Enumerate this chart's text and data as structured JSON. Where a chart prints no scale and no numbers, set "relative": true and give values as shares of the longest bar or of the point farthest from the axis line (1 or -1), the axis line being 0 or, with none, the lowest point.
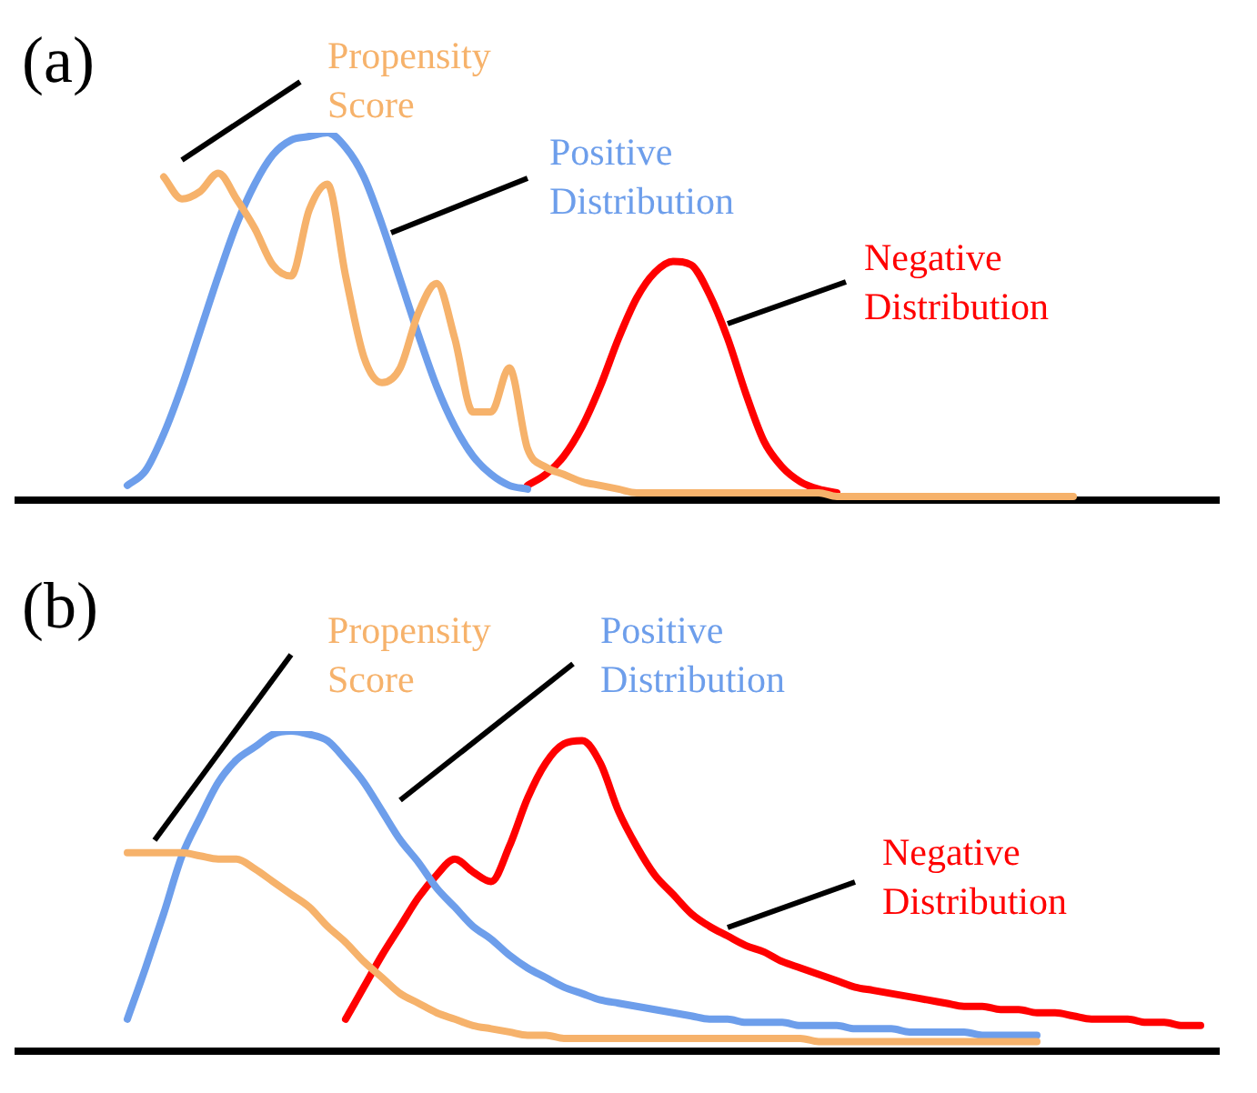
{
  "chart_data": [
    {
      "type": "line",
      "title": "(a)",
      "relative": true,
      "marker": "none",
      "tick_labels": false,
      "categories": [
        null,
        null,
        null,
        null,
        null,
        null,
        null,
        null,
        null,
        null,
        null,
        null,
        null,
        null,
        null,
        null,
        null,
        null,
        null,
        null,
        null,
        null,
        null,
        null,
        null,
        null,
        null,
        null,
        null,
        null,
        null,
        null,
        null,
        null,
        null,
        null,
        null,
        null,
        null,
        null,
        null,
        null,
        null,
        null,
        null,
        null,
        null,
        null,
        null,
        null,
        null,
        null,
        null,
        null,
        null,
        null,
        null,
        null,
        null,
        null,
        null,
        null,
        null,
        null,
        null,
        null,
        null
      ],
      "series": [
        {
          "name": "Propensity Score",
          "color": "#f6b26b",
          "values": [
            null,
            null,
            null,
            null,
            null,
            null,
            null,
            null,
            0.88,
            0.82,
            0.84,
            0.89,
            0.82,
            0.74,
            0.64,
            0.61,
            0.79,
            0.86,
            0.61,
            0.39,
            0.32,
            0.36,
            0.51,
            0.59,
            0.44,
            0.24,
            0.24,
            0.36,
            0.14,
            0.09,
            0.07,
            0.05,
            0.04,
            0.03,
            0.02,
            0.02,
            0.02,
            0.02,
            0.02,
            0.02,
            0.02,
            0.02,
            0.02,
            0.02,
            0.02,
            0.01,
            0.01,
            0.01,
            0.01,
            0.01,
            0.01,
            0.01,
            0.01,
            0.01,
            0.01,
            0.01,
            0.01,
            0.01,
            0.01,
            null,
            null,
            null,
            null,
            null,
            null,
            null,
            null
          ]
        },
        {
          "name": "Positive Distribution",
          "color": "#6d9eeb",
          "values": [
            null,
            null,
            null,
            null,
            null,
            null,
            0.04,
            0.08,
            0.18,
            0.31,
            0.46,
            0.61,
            0.75,
            0.86,
            0.94,
            0.98,
            0.99,
            1,
            0.96,
            0.88,
            0.75,
            0.6,
            0.45,
            0.31,
            0.2,
            0.12,
            0.07,
            0.04,
            0.03,
            null,
            null,
            null,
            null,
            null,
            null,
            null,
            null,
            null,
            null,
            null,
            null,
            null,
            null,
            null,
            null,
            null,
            null,
            null,
            null,
            null,
            null,
            null,
            null,
            null,
            null,
            null,
            null,
            null,
            null,
            null,
            null,
            null,
            null,
            null,
            null,
            null,
            null
          ]
        },
        {
          "name": "Negative Distribution",
          "color": "#ff0000",
          "values": [
            null,
            null,
            null,
            null,
            null,
            null,
            null,
            null,
            null,
            null,
            null,
            null,
            null,
            null,
            null,
            null,
            null,
            null,
            null,
            null,
            null,
            null,
            null,
            null,
            null,
            null,
            null,
            null,
            0.04,
            0.07,
            0.12,
            0.2,
            0.31,
            0.44,
            0.55,
            0.62,
            0.65,
            0.64,
            0.56,
            0.44,
            0.29,
            0.16,
            0.09,
            0.05,
            0.03,
            0.02,
            null,
            null,
            null,
            null,
            null,
            null,
            null,
            null,
            null,
            null,
            null,
            null,
            null,
            null,
            null,
            null,
            null,
            null,
            null,
            null,
            null
          ]
        }
      ]
    },
    {
      "type": "line",
      "title": "(b)",
      "relative": true,
      "marker": "none",
      "tick_labels": false,
      "categories": [
        null,
        null,
        null,
        null,
        null,
        null,
        null,
        null,
        null,
        null,
        null,
        null,
        null,
        null,
        null,
        null,
        null,
        null,
        null,
        null,
        null,
        null,
        null,
        null,
        null,
        null,
        null,
        null,
        null,
        null,
        null,
        null,
        null,
        null,
        null,
        null,
        null,
        null,
        null,
        null,
        null,
        null,
        null,
        null,
        null,
        null,
        null,
        null,
        null,
        null,
        null,
        null,
        null,
        null,
        null,
        null,
        null,
        null,
        null,
        null,
        null,
        null,
        null,
        null,
        null,
        null,
        null
      ],
      "series": [
        {
          "name": "Propensity Score",
          "color": "#f6b26b",
          "values": [
            null,
            null,
            null,
            null,
            null,
            null,
            0.62,
            0.62,
            0.62,
            0.62,
            0.61,
            0.6,
            0.6,
            0.57,
            0.53,
            0.49,
            0.45,
            0.39,
            0.34,
            0.28,
            0.23,
            0.18,
            0.15,
            0.12,
            0.1,
            0.08,
            0.07,
            0.06,
            0.05,
            0.05,
            0.04,
            0.04,
            0.04,
            0.04,
            0.04,
            0.04,
            0.04,
            0.04,
            0.04,
            0.04,
            0.04,
            0.04,
            0.04,
            0.04,
            0.03,
            0.03,
            0.03,
            0.03,
            0.03,
            0.03,
            0.03,
            0.03,
            0.03,
            0.03,
            0.03,
            0.03,
            0.03,
            null,
            null,
            null,
            null,
            null,
            null,
            null,
            null,
            null,
            null
          ]
        },
        {
          "name": "Positive Distribution",
          "color": "#6d9eeb",
          "values": [
            null,
            null,
            null,
            null,
            null,
            null,
            0.1,
            0.26,
            0.43,
            0.61,
            0.73,
            0.84,
            0.91,
            0.95,
            0.99,
            1,
            0.99,
            0.97,
            0.91,
            0.84,
            0.75,
            0.66,
            0.59,
            0.51,
            0.45,
            0.39,
            0.35,
            0.3,
            0.26,
            0.23,
            0.2,
            0.18,
            0.16,
            0.15,
            0.14,
            0.13,
            0.12,
            0.11,
            0.1,
            0.1,
            0.09,
            0.09,
            0.09,
            0.08,
            0.08,
            0.08,
            0.07,
            0.07,
            0.07,
            0.06,
            0.06,
            0.06,
            0.06,
            0.05,
            0.05,
            0.05,
            0.05,
            null,
            null,
            null,
            null,
            null,
            null,
            null,
            null,
            null,
            null
          ]
        },
        {
          "name": "Negative Distribution",
          "color": "#ff0000",
          "values": [
            null,
            null,
            null,
            null,
            null,
            null,
            null,
            null,
            null,
            null,
            null,
            null,
            null,
            null,
            null,
            null,
            null,
            null,
            0.1,
            0.2,
            0.3,
            0.39,
            0.48,
            0.55,
            0.6,
            0.56,
            0.53,
            0.64,
            0.79,
            0.9,
            0.96,
            0.97,
            0.9,
            0.75,
            0.64,
            0.55,
            0.49,
            0.43,
            0.39,
            0.36,
            0.33,
            0.31,
            0.28,
            0.26,
            0.24,
            0.22,
            0.2,
            0.19,
            0.18,
            0.17,
            0.16,
            0.15,
            0.14,
            0.14,
            0.13,
            0.13,
            0.12,
            0.12,
            0.11,
            0.1,
            0.1,
            0.1,
            0.09,
            0.09,
            0.08,
            0.08,
            null
          ]
        }
      ]
    }
  ]
}
